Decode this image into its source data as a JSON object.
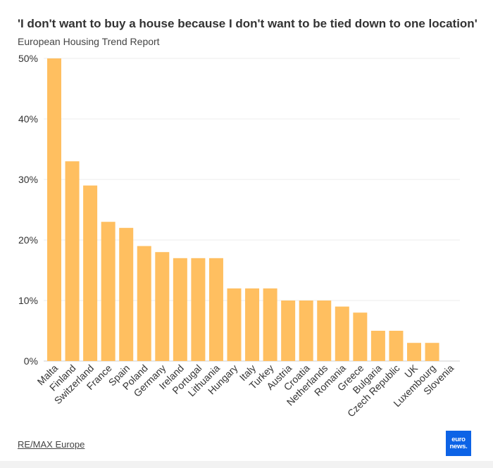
{
  "chart_data": {
    "type": "bar",
    "title": "'I don't want to buy a house because I don't want to be tied down to one location'",
    "subtitle": "European Housing Trend Report",
    "categories": [
      "Malta",
      "Finland",
      "Switzerland",
      "France",
      "Spain",
      "Poland",
      "Germany",
      "Ireland",
      "Portugal",
      "Lithuania",
      "Hungary",
      "Italy",
      "Turkey",
      "Austria",
      "Croatia",
      "Netherlands",
      "Romania",
      "Greece",
      "Bulgaria",
      "Czech Republic",
      "UK",
      "Luxembourg",
      "Slovenia"
    ],
    "values": [
      50,
      33,
      29,
      23,
      22,
      19,
      18,
      17,
      17,
      17,
      12,
      12,
      12,
      10,
      10,
      10,
      9,
      8,
      5,
      5,
      3,
      3,
      0
    ],
    "ylim": [
      0,
      50
    ],
    "yticks": [
      0,
      10,
      20,
      30,
      40,
      50
    ],
    "ytick_labels": [
      "0%",
      "10%",
      "20%",
      "30%",
      "40%",
      "50%"
    ],
    "xlabel": "",
    "ylabel": "",
    "grid": true,
    "bar_color": "#ffbf60"
  },
  "source": "RE/MAX Europe",
  "logo": {
    "line1": "euro",
    "line2": "news.",
    "color": "#0d63e6"
  }
}
